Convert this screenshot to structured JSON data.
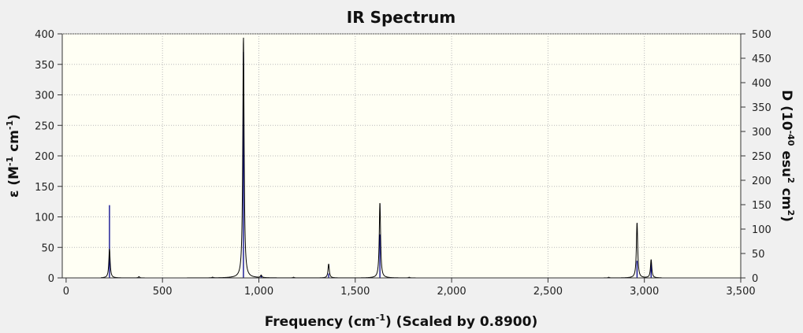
{
  "chart_data": {
    "type": "line",
    "title": "IR Spectrum",
    "xlabel": {
      "base": "Frequency (cm",
      "sup": "-1",
      "tail": ") (Scaled by 0.8900)"
    },
    "ylabel_left": {
      "parts": [
        "ε (M",
        "-1",
        " cm",
        "-1",
        ")"
      ]
    },
    "ylabel_right": {
      "parts": [
        "D (10",
        "-40",
        " esu",
        "2",
        " cm",
        "2",
        ")"
      ]
    },
    "xlim": [
      -20,
      3500
    ],
    "ylim_left": [
      0,
      400
    ],
    "ylim_right": [
      0,
      500
    ],
    "x_ticks": [
      0,
      500,
      1000,
      1500,
      2000,
      2500,
      3000,
      3500
    ],
    "x_tick_labels": [
      "0",
      "500",
      "1,000",
      "1,500",
      "2,000",
      "2,500",
      "3,000",
      "3,500"
    ],
    "y_left_ticks": [
      0,
      50,
      100,
      150,
      200,
      250,
      300,
      350,
      400
    ],
    "y_left_tick_labels": [
      "0",
      "50",
      "100",
      "150",
      "200",
      "250",
      "300",
      "350",
      "400"
    ],
    "y_right_ticks": [
      0,
      50,
      100,
      150,
      200,
      250,
      300,
      350,
      400,
      450,
      500
    ],
    "y_right_tick_labels": [
      "0",
      "50",
      "100",
      "150",
      "200",
      "250",
      "300",
      "350",
      "400",
      "450",
      "500"
    ],
    "grid": true,
    "spectrum_range": [
      180,
      3090
    ],
    "lineshape_halfwidth": 4,
    "peaks": [
      {
        "x": 225,
        "epsilon": 48
      },
      {
        "x": 378,
        "epsilon": 2
      },
      {
        "x": 760,
        "epsilon": 1
      },
      {
        "x": 920,
        "epsilon": 396
      },
      {
        "x": 1012,
        "epsilon": 4
      },
      {
        "x": 1180,
        "epsilon": 1
      },
      {
        "x": 1362,
        "epsilon": 23
      },
      {
        "x": 1628,
        "epsilon": 124
      },
      {
        "x": 1780,
        "epsilon": 1
      },
      {
        "x": 2815,
        "epsilon": 1
      },
      {
        "x": 2962,
        "epsilon": 91
      },
      {
        "x": 3035,
        "epsilon": 30
      }
    ],
    "sticks": [
      {
        "x": 225,
        "D": 149
      },
      {
        "x": 920,
        "D": 463
      },
      {
        "x": 1012,
        "D": 6
      },
      {
        "x": 1362,
        "D": 9
      },
      {
        "x": 1628,
        "D": 89
      },
      {
        "x": 2962,
        "D": 35
      },
      {
        "x": 3035,
        "D": 32
      }
    ],
    "colors": {
      "spectrum": "#000000",
      "sticks": "#00008b",
      "plot_background": "#fffff4",
      "figure_background": "#f0f0f0",
      "grid": "#b8b8b8"
    }
  }
}
